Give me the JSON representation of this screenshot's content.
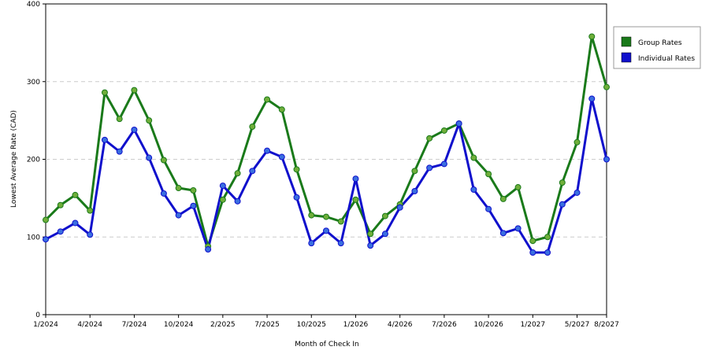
{
  "chart_data": {
    "type": "line",
    "x_label": "Month of Check In",
    "y_label": "Lowest Average Rate (CAD)",
    "categories": [
      "1/2024",
      null,
      null,
      "4/2024",
      null,
      null,
      "7/2024",
      null,
      null,
      "10/2024",
      null,
      null,
      "2/2025",
      null,
      null,
      "7/2025",
      null,
      null,
      "10/2025",
      null,
      null,
      "1/2026",
      null,
      null,
      "4/2026",
      null,
      null,
      "7/2026",
      null,
      null,
      "10/2026",
      null,
      null,
      "1/2027",
      null,
      null,
      "5/2027",
      null,
      "8/2027"
    ],
    "series": [
      {
        "name": "Group Rates",
        "color": "#1a7a1a",
        "marker": "#6fae3a",
        "values": [
          122,
          141,
          154,
          134,
          286,
          252,
          289,
          250,
          199,
          163,
          160,
          88,
          148,
          182,
          242,
          277,
          264,
          187,
          128,
          126,
          120,
          148,
          104,
          127,
          142,
          185,
          227,
          237,
          246,
          202,
          181,
          149,
          164,
          95,
          100,
          170,
          222,
          358,
          293
        ]
      },
      {
        "name": "Individual Rates",
        "color": "#1010cc",
        "marker": "#3a6ee0",
        "values": [
          97,
          107,
          118,
          103,
          225,
          210,
          238,
          202,
          156,
          128,
          140,
          84,
          166,
          146,
          185,
          211,
          203,
          151,
          92,
          108,
          92,
          175,
          89,
          104,
          138,
          159,
          189,
          194,
          246,
          161,
          136,
          105,
          111,
          80,
          80,
          142,
          157,
          278,
          200
        ]
      }
    ],
    "ylim": [
      0,
      400
    ],
    "yticks": [
      0,
      100,
      200,
      300,
      400
    ],
    "grid": true,
    "legend": "right"
  }
}
